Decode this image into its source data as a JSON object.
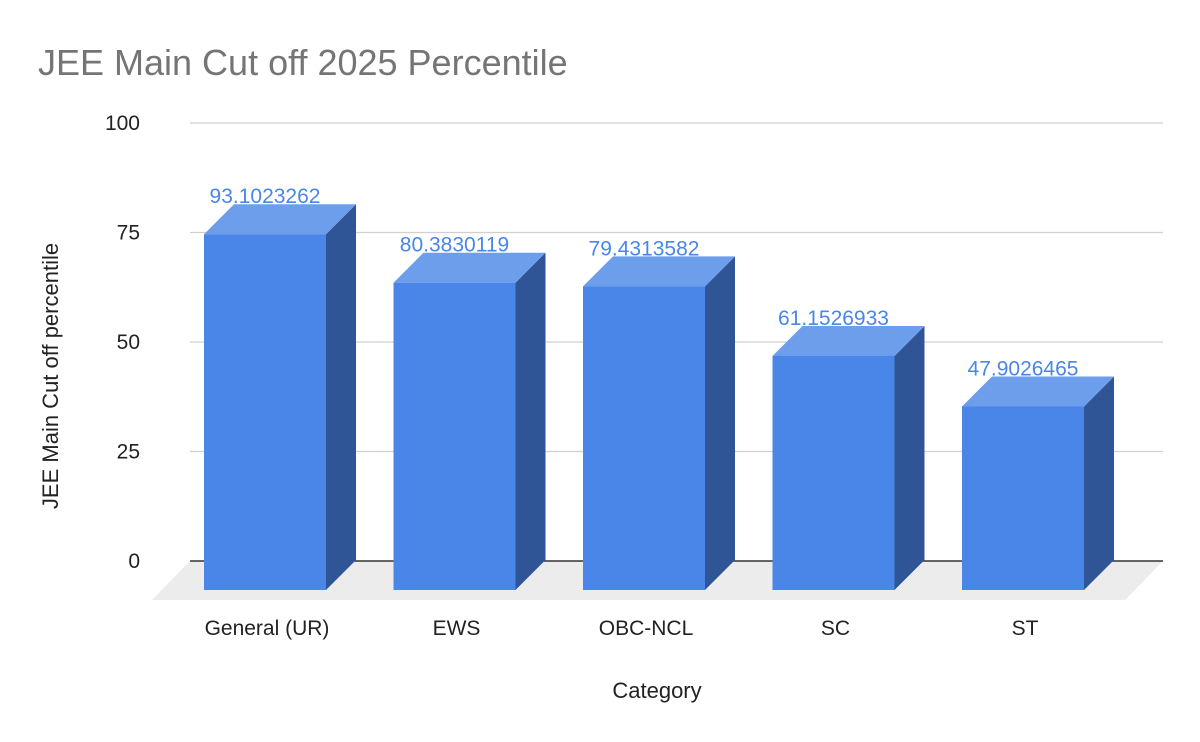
{
  "chart_data": {
    "type": "bar",
    "title": "JEE Main Cut off 2025 Percentile",
    "xlabel": "Category",
    "ylabel": "JEE Main Cut off percentile",
    "categories": [
      "General (UR)",
      "EWS",
      "OBC-NCL",
      "SC",
      "ST"
    ],
    "values": [
      93.1023262,
      80.3830119,
      79.4313582,
      61.1526933,
      47.9026465
    ],
    "data_labels": [
      "93.1023262",
      "80.3830119",
      "79.4313582",
      "61.1526933",
      "47.9026465"
    ],
    "ylim": [
      0,
      100
    ],
    "yticks": [
      "0",
      "25",
      "50",
      "75",
      "100"
    ],
    "grid": true,
    "legend": "none",
    "style": "3d",
    "colors": {
      "bar_front": "#4a86e8",
      "bar_top": "#6d9eeb",
      "bar_side": "#2f5597",
      "data_label": "#4a86e8",
      "grid": "#d0d0d0",
      "floor": "#ececec"
    }
  }
}
